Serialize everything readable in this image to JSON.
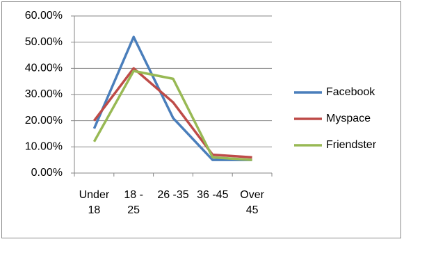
{
  "chart_data": {
    "type": "line",
    "categories": [
      "Under 18",
      "18 - 25",
      "26 -35",
      "36 -45",
      "Over 45"
    ],
    "series": [
      {
        "name": "Facebook",
        "color": "#4a7ebb",
        "values": [
          17,
          52,
          21,
          5,
          5
        ]
      },
      {
        "name": "Myspace",
        "color": "#be4b48",
        "values": [
          20,
          40,
          27,
          7,
          6
        ]
      },
      {
        "name": "Friendster",
        "color": "#98b954",
        "values": [
          12,
          39,
          36,
          6,
          5
        ]
      }
    ],
    "ylim": [
      0,
      60
    ],
    "yticks": [
      {
        "value": 0,
        "label": "0.00%"
      },
      {
        "value": 10,
        "label": "10.00%"
      },
      {
        "value": 20,
        "label": "20.00%"
      },
      {
        "value": 30,
        "label": "30.00%"
      },
      {
        "value": 40,
        "label": "40.00%"
      },
      {
        "value": 50,
        "label": "50.00%"
      },
      {
        "value": 60,
        "label": "60.00%"
      }
    ],
    "grid": true,
    "legend": "right"
  }
}
